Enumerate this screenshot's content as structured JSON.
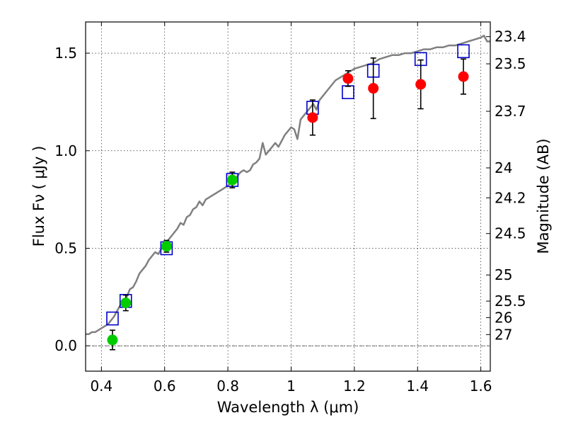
{
  "chart_data": {
    "type": "scatter",
    "xlabel": "Wavelength  λ (μm)",
    "ylabel": "Flux  Fν  ( μJy )",
    "y2label": "Magnitude (AB)",
    "xlim": [
      0.35,
      1.63
    ],
    "ylim": [
      -0.13,
      1.66
    ],
    "grid": true,
    "x_ticks": [
      {
        "value": 0.4,
        "label": "0.4"
      },
      {
        "value": 0.6,
        "label": "0.6"
      },
      {
        "value": 0.8,
        "label": "0.8"
      },
      {
        "value": 1.0,
        "label": "1"
      },
      {
        "value": 1.2,
        "label": "1.2"
      },
      {
        "value": 1.4,
        "label": "1.4"
      },
      {
        "value": 1.6,
        "label": "1.6"
      }
    ],
    "y_ticks": [
      {
        "value": 0.0,
        "label": "0.0"
      },
      {
        "value": 0.5,
        "label": "0.5"
      },
      {
        "value": 1.0,
        "label": "1.0"
      },
      {
        "value": 1.5,
        "label": "1.5"
      }
    ],
    "y2_ticks": [
      {
        "mag": 23.4,
        "label": "23.4"
      },
      {
        "mag": 23.5,
        "label": "23.5"
      },
      {
        "mag": 23.7,
        "label": "23.7"
      },
      {
        "mag": 24,
        "label": "24"
      },
      {
        "mag": 24.2,
        "label": "24.2"
      },
      {
        "mag": 24.5,
        "label": "24.5"
      },
      {
        "mag": 25,
        "label": "25"
      },
      {
        "mag": 25.5,
        "label": "25.5"
      },
      {
        "mag": 26,
        "label": "26"
      },
      {
        "mag": 27,
        "label": "27"
      }
    ],
    "series": [
      {
        "name": "model_spectrum",
        "kind": "line",
        "color": "#808080",
        "x": [
          0.35,
          0.36,
          0.37,
          0.38,
          0.39,
          0.4,
          0.41,
          0.42,
          0.43,
          0.44,
          0.45,
          0.46,
          0.47,
          0.48,
          0.49,
          0.5,
          0.51,
          0.52,
          0.53,
          0.54,
          0.55,
          0.56,
          0.57,
          0.58,
          0.59,
          0.6,
          0.61,
          0.62,
          0.63,
          0.64,
          0.65,
          0.66,
          0.67,
          0.68,
          0.69,
          0.7,
          0.71,
          0.72,
          0.73,
          0.74,
          0.75,
          0.76,
          0.77,
          0.78,
          0.79,
          0.8,
          0.81,
          0.82,
          0.83,
          0.84,
          0.85,
          0.86,
          0.87,
          0.88,
          0.89,
          0.9,
          0.91,
          0.92,
          0.93,
          0.94,
          0.95,
          0.96,
          0.97,
          0.98,
          0.99,
          1.0,
          1.01,
          1.02,
          1.03,
          1.04,
          1.05,
          1.06,
          1.07,
          1.08,
          1.09,
          1.1,
          1.12,
          1.14,
          1.16,
          1.18,
          1.2,
          1.22,
          1.24,
          1.26,
          1.28,
          1.3,
          1.32,
          1.34,
          1.36,
          1.38,
          1.4,
          1.42,
          1.44,
          1.46,
          1.48,
          1.5,
          1.52,
          1.54,
          1.56,
          1.58,
          1.6,
          1.61,
          1.62,
          1.63
        ],
        "y": [
          0.06,
          0.06,
          0.07,
          0.07,
          0.08,
          0.09,
          0.1,
          0.11,
          0.13,
          0.15,
          0.18,
          0.21,
          0.22,
          0.25,
          0.29,
          0.3,
          0.33,
          0.37,
          0.39,
          0.41,
          0.44,
          0.46,
          0.48,
          0.47,
          0.5,
          0.52,
          0.54,
          0.56,
          0.58,
          0.6,
          0.63,
          0.62,
          0.66,
          0.67,
          0.7,
          0.71,
          0.74,
          0.72,
          0.75,
          0.76,
          0.77,
          0.78,
          0.79,
          0.8,
          0.81,
          0.82,
          0.84,
          0.85,
          0.87,
          0.89,
          0.9,
          0.89,
          0.9,
          0.93,
          0.94,
          0.96,
          1.04,
          0.98,
          1.0,
          1.02,
          1.04,
          1.02,
          1.05,
          1.08,
          1.1,
          1.12,
          1.11,
          1.06,
          1.16,
          1.18,
          1.2,
          1.22,
          1.24,
          1.21,
          1.26,
          1.28,
          1.32,
          1.36,
          1.38,
          1.4,
          1.42,
          1.43,
          1.44,
          1.45,
          1.47,
          1.48,
          1.49,
          1.49,
          1.5,
          1.5,
          1.51,
          1.52,
          1.52,
          1.53,
          1.53,
          1.54,
          1.54,
          1.55,
          1.56,
          1.57,
          1.58,
          1.59,
          1.56,
          1.56
        ]
      },
      {
        "name": "model_photometry",
        "kind": "open-square",
        "color": "#0000cc",
        "x": [
          0.435,
          0.477,
          0.606,
          0.814,
          1.068,
          1.18,
          1.26,
          1.41,
          1.545
        ],
        "y": [
          0.14,
          0.23,
          0.5,
          0.85,
          1.22,
          1.3,
          1.41,
          1.47,
          1.51
        ]
      },
      {
        "name": "observed_optical",
        "kind": "filled-circle",
        "color": "#00cc00",
        "x": [
          0.435,
          0.477,
          0.606,
          0.814
        ],
        "y": [
          0.03,
          0.22,
          0.51,
          0.85
        ],
        "err": [
          0.05,
          0.04,
          0.03,
          0.04
        ]
      },
      {
        "name": "observed_ir",
        "kind": "filled-circle",
        "color": "#ff0000",
        "x": [
          1.068,
          1.18,
          1.26,
          1.41,
          1.545
        ],
        "y": [
          1.17,
          1.37,
          1.32,
          1.34,
          1.38
        ],
        "err": [
          0.09,
          0.04,
          0.155,
          0.125,
          0.09
        ]
      }
    ]
  }
}
